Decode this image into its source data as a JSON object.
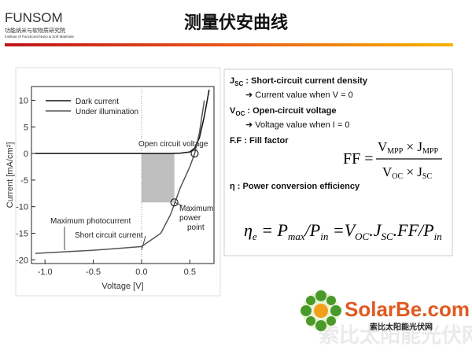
{
  "header": {
    "logo": "FUNSOM",
    "logo_cn": "功能纳米与软物质研究院",
    "logo_en": "Institute of Functional Nano & Soft Materials",
    "title": "测量伏安曲线"
  },
  "chart_data": {
    "type": "line",
    "xlabel": "Voltage [V]",
    "ylabel": "Current [mA/cm²]",
    "x": [
      -1.1,
      -0.8,
      -0.5,
      -0.2,
      0,
      0.2,
      0.3,
      0.4,
      0.5,
      0.55,
      0.6,
      0.65,
      0.7
    ],
    "series": [
      {
        "name": "Dark current",
        "color": "#111111",
        "values": [
          0,
          0,
          0,
          0,
          0,
          0,
          0,
          0.05,
          0.3,
          1,
          3,
          7,
          12
        ]
      },
      {
        "name": "Under illumination",
        "color": "#555555",
        "values": [
          -18.8,
          -18.5,
          -18.2,
          -17.8,
          -17.5,
          -15,
          -11.5,
          -6.5,
          -2.5,
          0,
          4,
          10,
          null
        ]
      }
    ],
    "points": [
      {
        "x": 0.55,
        "y": 0
      },
      {
        "x": 0.34,
        "y": -9.2
      }
    ],
    "xlim": [
      -1.14,
      0.75
    ],
    "ylim": [
      -20.7,
      12.6
    ],
    "xticks": [
      {
        "value": -1,
        "label": "-1.0"
      },
      -0.5,
      {
        "value": 0,
        "label": "0.0"
      },
      0.5
    ],
    "yticks": [
      10,
      5,
      0,
      -5,
      -10,
      -15,
      -20
    ],
    "annotations": [
      "Open circuit voltage",
      "Maximum",
      "power",
      "point",
      "Maximum photocurrent",
      "Short circuit current"
    ]
  },
  "definitions": [
    {
      "symbol": "J",
      "sub": "SC",
      "text": " : Short-circuit current density",
      "detail": "Current value when  V = 0"
    },
    {
      "symbol": "V",
      "sub": "OC",
      "text": " : Open-circuit voltage",
      "detail": "Voltage value when I = 0"
    },
    {
      "symbol": "F.F",
      "text": " : Fill factor"
    },
    {
      "symbol": "η",
      "text": " : Power conversion efficiency"
    }
  ],
  "ff_formula": {
    "lhs": "FF =",
    "num": [
      {
        "t": "V",
        "s": "MPP"
      },
      {
        "t": " × J",
        "s": "MPP"
      }
    ],
    "den": [
      {
        "t": "V",
        "s": "OC"
      },
      {
        "t": " × J",
        "s": "SC"
      }
    ]
  },
  "eta_formula": [
    {
      "t": "η",
      "s": "e"
    },
    {
      "t": " = P",
      "s": "max"
    },
    {
      "t": "/P",
      "s": "in"
    },
    {
      "t": " =V",
      "s": "OC"
    },
    {
      "t": ".J",
      "s": "SC"
    },
    {
      "t": ".FF/P",
      "s": "in"
    }
  ],
  "brand": {
    "name": "SolarBe.com",
    "cn": "索比太阳能光伏网"
  }
}
